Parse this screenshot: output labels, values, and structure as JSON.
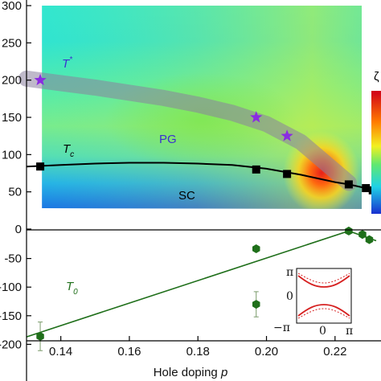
{
  "chart_data": [
    {
      "type": "scatter",
      "panel": "top",
      "xlabel_prefix": "Hole doping ",
      "xlabel_var": "p",
      "xlim": [
        0.13,
        0.232
      ],
      "ylim": [
        0,
        300
      ],
      "x_ticks": [
        0.14,
        0.16,
        0.18,
        0.2,
        0.22
      ],
      "x_tick_labels": [
        "0.14",
        "0.16",
        "0.18",
        "0.20",
        "0.22"
      ],
      "y_ticks": [
        0,
        50,
        100,
        150,
        200,
        250,
        300
      ],
      "y_tick_labels": [
        "0",
        "50",
        "100",
        "150",
        "200",
        "250",
        "300"
      ],
      "background": "heatmap",
      "colorbar_label": "",
      "colorbar_symbol": "ζ",
      "colors": {
        "tc": "#000000",
        "tstar": "#8a2be2",
        "band": "#8a7f9e",
        "annotation": "#3b2fd0"
      },
      "series": [
        {
          "name": "Tc",
          "marker": "square",
          "x": [
            0.134,
            0.197,
            0.206,
            0.224,
            0.229,
            0.231
          ],
          "y": [
            84,
            80,
            74,
            60,
            55,
            52
          ]
        },
        {
          "name": "T*",
          "marker": "star",
          "x": [
            0.134,
            0.197,
            0.206
          ],
          "y": [
            200,
            150,
            125
          ]
        }
      ],
      "tc_curve": {
        "x": [
          0.13,
          0.14,
          0.15,
          0.16,
          0.17,
          0.18,
          0.19,
          0.2,
          0.21,
          0.22,
          0.224,
          0.228,
          0.231
        ],
        "y": [
          84,
          86,
          88,
          89,
          89,
          88,
          86,
          81,
          73,
          63,
          60,
          56,
          52
        ]
      },
      "tstar_band": {
        "x": [
          0.13,
          0.14,
          0.15,
          0.16,
          0.17,
          0.18,
          0.19,
          0.2,
          0.21,
          0.224
        ],
        "y": [
          202,
          196,
          190,
          183,
          176,
          167,
          156,
          141,
          117,
          62
        ]
      },
      "annotations": {
        "tstar_label": "T",
        "tstar_sup": "*",
        "tc_label": "T",
        "tc_sub": "c",
        "pg": "PG",
        "sc": "SC"
      }
    },
    {
      "type": "scatter",
      "panel": "bottom",
      "xlim": [
        0.13,
        0.232
      ],
      "ylim": [
        -250,
        0
      ],
      "y_tick_labels": [
        "0",
        "-50",
        "-100",
        "-150",
        "-200"
      ],
      "y_ticks": [
        0,
        -50,
        -100,
        -150,
        -200
      ],
      "colors": {
        "t0": "#1f6f1a"
      },
      "series": [
        {
          "name": "T0",
          "marker": "hexagon",
          "x": [
            0.134,
            0.197,
            0.197,
            0.224,
            0.228,
            0.23
          ],
          "y": [
            -186,
            -33,
            -130,
            -2,
            -8,
            -17
          ],
          "yerr": [
            25,
            0,
            22,
            0,
            0,
            0
          ]
        }
      ],
      "fit_line": {
        "x": [
          0.13,
          0.224,
          0.232
        ],
        "y": [
          -187,
          -2,
          -19
        ]
      },
      "annotations": {
        "t0_label": "T",
        "t0_sub": "0"
      },
      "inset": {
        "y_tick_labels": [
          "π",
          "0",
          "−π"
        ],
        "x_tick_labels": [
          "0",
          "π"
        ]
      }
    }
  ]
}
